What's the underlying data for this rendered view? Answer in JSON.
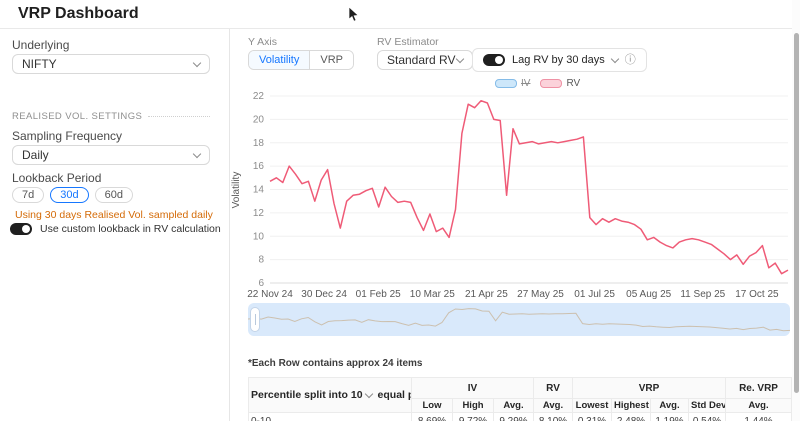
{
  "header": {
    "title": "VRP Dashboard"
  },
  "sidebar": {
    "underlying_label": "Underlying",
    "underlying_value": "NIFTY",
    "section_title": "REALISED VOL. SETTINGS",
    "sampling_label": "Sampling Frequency",
    "sampling_value": "Daily",
    "lookback_label": "Lookback Period",
    "lookback_options": [
      "7d",
      "30d",
      "60d"
    ],
    "lookback_selected": "30d",
    "note": "Using 30 days Realised Vol. sampled daily",
    "custom_lookback_label": "Use custom lookback in RV calculation"
  },
  "controls": {
    "y_axis_label": "Y Axis",
    "y_axis_options": [
      "Volatility",
      "VRP"
    ],
    "y_axis_selected": "Volatility",
    "rv_estimator_label": "RV Estimator",
    "rv_estimator_value": "Standard RV",
    "lag_toggle_label": "Lag RV by 30 days",
    "info_icon": "ⓘ"
  },
  "chart_data": {
    "type": "line",
    "ylabel": "Volatility",
    "ylim": [
      6,
      22
    ],
    "yticks": [
      6,
      8,
      10,
      12,
      14,
      16,
      18,
      20,
      22
    ],
    "xticks": [
      "22 Nov 24",
      "30 Dec 24",
      "01 Feb 25",
      "10 Mar 25",
      "21 Apr 25",
      "27 May 25",
      "01 Jul 25",
      "05 Aug 25",
      "11 Sep 25",
      "17 Oct 25"
    ],
    "grid": true,
    "legend_position": "top",
    "legend": [
      {
        "name": "IV",
        "color": "#cde7fa",
        "hidden": true
      },
      {
        "name": "RV",
        "color": "#ef5b77",
        "hidden": false
      }
    ],
    "series": [
      {
        "name": "RV",
        "color": "#ef5b77",
        "values": [
          14.7,
          15.0,
          14.6,
          16.0,
          15.3,
          14.5,
          14.7,
          13.0,
          14.8,
          15.7,
          12.8,
          10.7,
          13.0,
          13.5,
          13.6,
          13.9,
          14.1,
          12.5,
          14.2,
          13.4,
          12.9,
          13.0,
          12.9,
          11.6,
          10.5,
          11.9,
          10.4,
          10.7,
          9.9,
          12.3,
          18.8,
          21.3,
          21.0,
          21.6,
          21.4,
          20.0,
          19.9,
          13.5,
          19.2,
          17.9,
          18.0,
          18.1,
          17.9,
          18.0,
          18.1,
          18.0,
          18.1,
          18.2,
          18.3,
          18.5,
          11.6,
          11.0,
          11.5,
          11.2,
          11.5,
          11.3,
          11.2,
          11.0,
          10.6,
          9.7,
          9.9,
          9.5,
          9.2,
          9.0,
          9.5,
          9.7,
          9.8,
          9.7,
          9.5,
          9.3,
          8.9,
          8.5,
          8.0,
          8.4,
          7.6,
          8.3,
          8.6,
          9.2,
          7.3,
          7.7,
          6.8,
          7.1
        ]
      }
    ]
  },
  "table": {
    "note": "*Each Row contains approx 24 items",
    "percentile_prefix": "Percentile split into",
    "percentile_value": "10",
    "percentile_suffix": "equal parts",
    "groups": [
      {
        "label": "IV",
        "cols": [
          "Low",
          "High",
          "Avg."
        ]
      },
      {
        "label": "RV",
        "cols": [
          "Avg."
        ]
      },
      {
        "label": "VRP",
        "cols": [
          "Lowest",
          "Highest",
          "Avg.",
          "Std Dev"
        ]
      },
      {
        "label": "Re. VRP",
        "cols": [
          "Avg."
        ]
      }
    ],
    "rows": [
      {
        "label": "0-10",
        "values": [
          "8.69%",
          "9.72%",
          "9.29%",
          "8.10%",
          "0.31%",
          "2.48%",
          "1.19%",
          "0.54%",
          "1.44%"
        ]
      }
    ]
  }
}
